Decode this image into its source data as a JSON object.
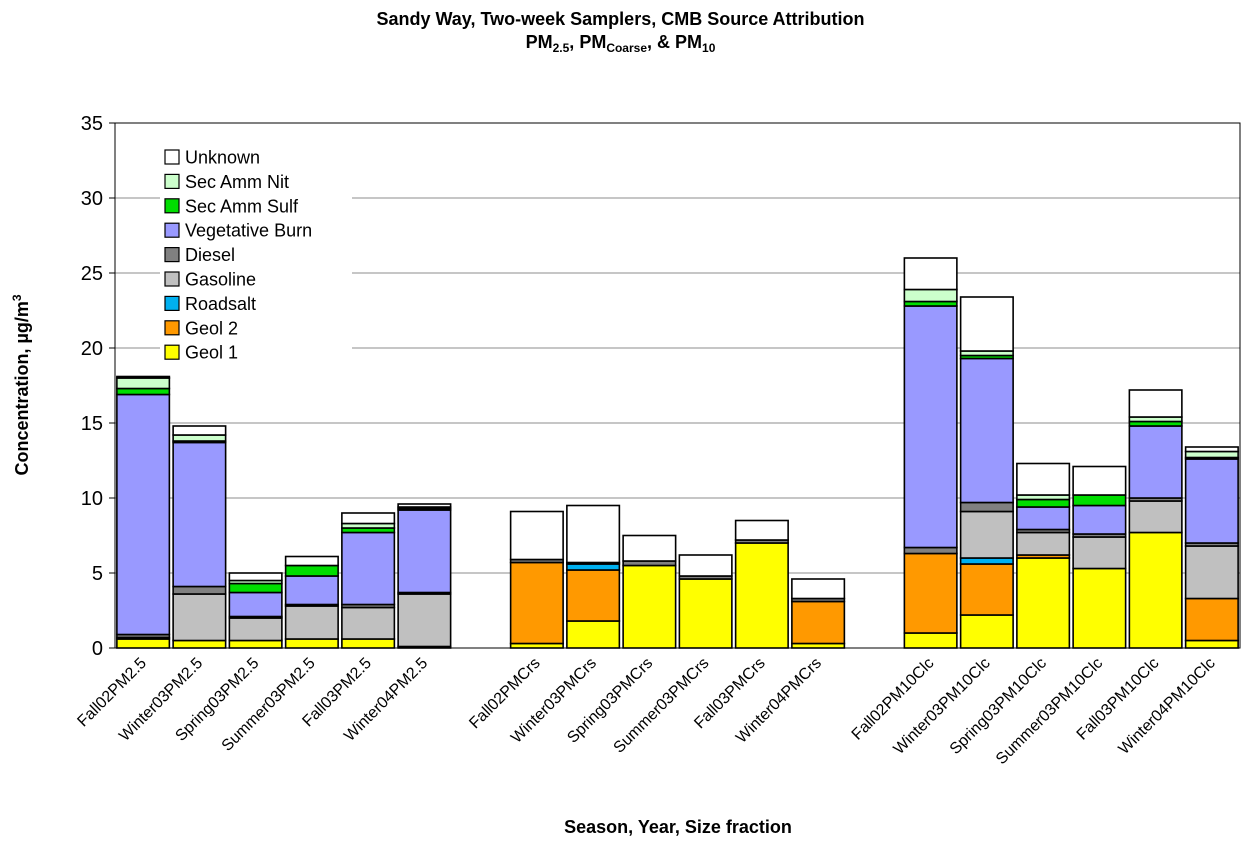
{
  "chart_data": {
    "type": "bar",
    "stacked": true,
    "title": "Sandy Way, Two-week Samplers, CMB Source Attribution",
    "subtitle": {
      "pm25_base": "PM",
      "pm25_sub": "2.5",
      "sep1": ", ",
      "coarse_base": "PM",
      "coarse_sub": "Coarse",
      "sep2": ", & ",
      "pm10_base": "PM",
      "pm10_sub": "10"
    },
    "xlabel": "Season, Year, Size fraction",
    "ylabel": {
      "base": "Concentration, µg/m",
      "sup": "3"
    },
    "ylim": [
      0,
      35
    ],
    "yticks": [
      0,
      5,
      10,
      15,
      20,
      25,
      30,
      35
    ],
    "grid": true,
    "legend_position": "top-left",
    "categories": [
      "Fall02PM2.5",
      "Winter03PM2.5",
      "Spring03PM2.5",
      "Summer03PM2.5",
      "Fall03PM2.5",
      "Winter04PM2.5",
      "",
      "Fall02PMCrs",
      "Winter03PMCrs",
      "Spring03PMCrs",
      "Summer03PMCrs",
      "Fall03PMCrs",
      "Winter04PMCrs",
      "",
      "Fall02PM10Clc",
      "Winter03PM10Clc",
      "Spring03PM10Clc",
      "Summer03PM10Clc",
      "Fall03PM10Clc",
      "Winter04PM10Clc"
    ],
    "series": [
      {
        "name": "Geol 1",
        "color": "#ffff00",
        "values": [
          0.6,
          0.5,
          0.5,
          0.6,
          0.6,
          0.1,
          0,
          0.3,
          1.8,
          5.5,
          4.6,
          7.0,
          0.3,
          0,
          1.0,
          2.2,
          6.0,
          5.3,
          7.7,
          0.5
        ]
      },
      {
        "name": "Geol 2",
        "color": "#ff9900",
        "values": [
          0.1,
          0,
          0,
          0,
          0,
          0,
          0,
          5.4,
          3.4,
          0,
          0,
          0,
          2.8,
          0,
          5.3,
          3.4,
          0.2,
          0,
          0,
          2.8
        ]
      },
      {
        "name": "Roadsalt",
        "color": "#00b0f0",
        "values": [
          0,
          0,
          0,
          0,
          0,
          0,
          0,
          0,
          0.4,
          0,
          0,
          0,
          0,
          0,
          0,
          0.4,
          0,
          0,
          0,
          0
        ]
      },
      {
        "name": "Gasoline",
        "color": "#c0c0c0",
        "values": [
          0,
          3.1,
          1.5,
          2.2,
          2.1,
          3.5,
          0,
          0,
          0,
          0,
          0,
          0,
          0,
          0,
          0,
          3.1,
          1.5,
          2.1,
          2.1,
          3.5
        ]
      },
      {
        "name": "Diesel",
        "color": "#808080",
        "values": [
          0.2,
          0.5,
          0.1,
          0.1,
          0.2,
          0.1,
          0,
          0.2,
          0.1,
          0.3,
          0.2,
          0.2,
          0.2,
          0,
          0.4,
          0.6,
          0.2,
          0.2,
          0.2,
          0.2
        ]
      },
      {
        "name": "Vegetative Burn",
        "color": "#9999ff",
        "values": [
          16.0,
          9.6,
          1.6,
          1.9,
          4.8,
          5.5,
          0,
          0,
          0,
          0,
          0,
          0,
          0,
          0,
          16.1,
          9.6,
          1.5,
          1.9,
          4.8,
          5.6
        ]
      },
      {
        "name": "Sec Amm Sulf",
        "color": "#00dd00",
        "values": [
          0.4,
          0.1,
          0.6,
          0.7,
          0.3,
          0.1,
          0,
          0,
          0,
          0,
          0,
          0,
          0,
          0,
          0.3,
          0.2,
          0.5,
          0.7,
          0.3,
          0.1
        ]
      },
      {
        "name": "Sec Amm Nit",
        "color": "#ccffcc",
        "values": [
          0.7,
          0.4,
          0.2,
          0,
          0.3,
          0.1,
          0,
          0,
          0,
          0,
          0,
          0,
          0,
          0,
          0.8,
          0.3,
          0.3,
          0,
          0.3,
          0.4
        ]
      },
      {
        "name": "Unknown",
        "color": "#ffffff",
        "values": [
          0.1,
          0.6,
          0.5,
          0.6,
          0.7,
          0.2,
          0,
          3.2,
          3.8,
          1.7,
          1.4,
          1.3,
          1.3,
          0,
          2.1,
          3.6,
          2.1,
          1.9,
          1.8,
          0.3
        ]
      }
    ]
  }
}
